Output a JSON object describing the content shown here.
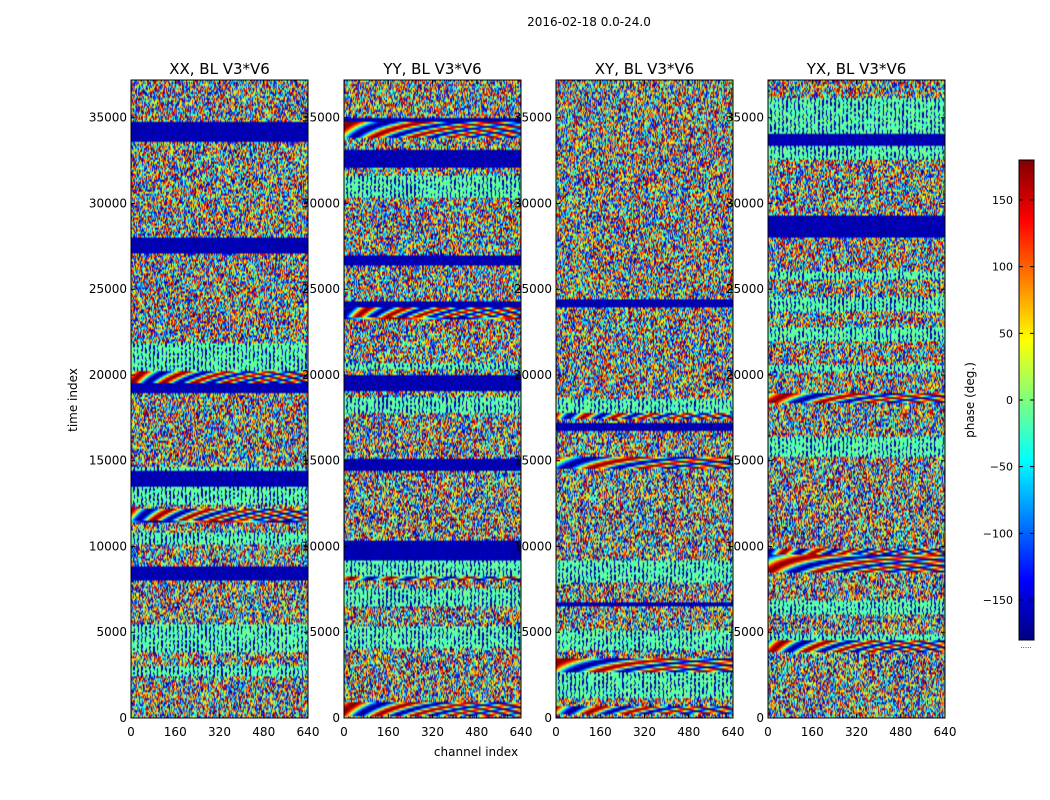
{
  "figure": {
    "suptitle": "2016-02-18 0.0-24.0",
    "colorbar_ellipsis": "....."
  },
  "chart_data": {
    "type": "heatmap",
    "colormap": "jet",
    "shared_xlabel": "channel index",
    "shared_ylabel": "time index",
    "xlim": [
      0,
      640
    ],
    "ylim": [
      0,
      37200
    ],
    "xticks": [
      0,
      160,
      320,
      480,
      640
    ],
    "yticks": [
      0,
      5000,
      10000,
      15000,
      20000,
      25000,
      30000,
      35000
    ],
    "panels": [
      {
        "title": "XX, BL V3*V6",
        "polarization": "XX"
      },
      {
        "title": "YY, BL V3*V6",
        "polarization": "YY"
      },
      {
        "title": "XY, BL V3*V6",
        "polarization": "XY"
      },
      {
        "title": "YX, BL V3*V6",
        "polarization": "YX"
      }
    ],
    "colorbar": {
      "label": "phase (deg.)",
      "vmin": -180,
      "vmax": 180,
      "ticks": [
        -150,
        -100,
        -50,
        0,
        50,
        100,
        150
      ]
    },
    "colors": {
      "jet_stops": [
        "#00007f",
        "#0000ff",
        "#007fff",
        "#00ffff",
        "#7fff7f",
        "#ffff00",
        "#ff7f00",
        "#ff0000",
        "#7f0000"
      ]
    }
  }
}
